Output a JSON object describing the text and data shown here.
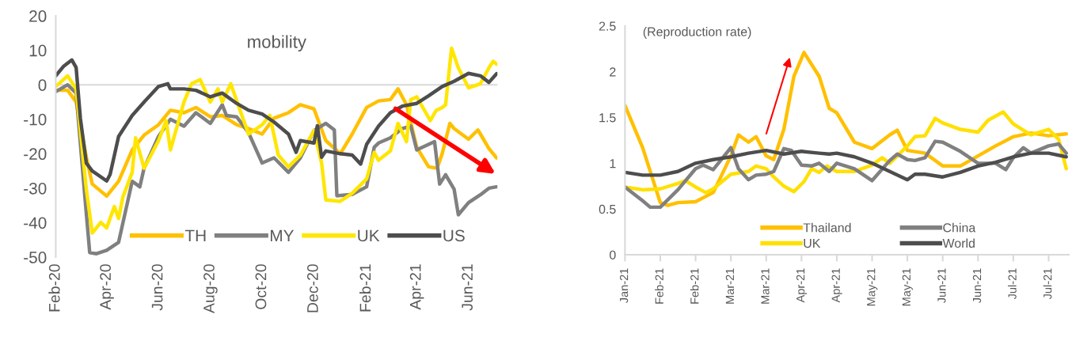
{
  "chart_data": [
    {
      "type": "line",
      "title": "mobility",
      "xlim": [
        "2020-02-01",
        "2021-07-05"
      ],
      "ylim": [
        -50,
        20
      ],
      "yticks": [
        -50,
        -40,
        -30,
        -20,
        -10,
        0,
        10,
        20
      ],
      "xticks": [
        {
          "value": "2020-02-01",
          "label": "Feb-20"
        },
        {
          "value": "2020-04-01",
          "label": "Apr-20"
        },
        {
          "value": "2020-06-01",
          "label": "Jun-20"
        },
        {
          "value": "2020-08-01",
          "label": "Aug-20"
        },
        {
          "value": "2020-10-01",
          "label": "Oct-20"
        },
        {
          "value": "2020-12-01",
          "label": "Dec-20"
        },
        {
          "value": "2021-02-01",
          "label": "Feb-21"
        },
        {
          "value": "2021-04-01",
          "label": "Apr-21"
        },
        {
          "value": "2021-06-01",
          "label": "Jun-21"
        }
      ],
      "ref_lines": [
        {
          "axis": "y",
          "value": 0,
          "color": "#d9d9d9"
        }
      ],
      "grid": false,
      "legend": "bottom",
      "series": [
        {
          "name": "TH",
          "color": "#ffc000",
          "x": [
            "2020-02-01",
            "2020-02-15",
            "2020-02-25",
            "2020-03-08",
            "2020-03-15",
            "2020-04-01",
            "2020-04-15",
            "2020-05-01",
            "2020-05-15",
            "2020-06-01",
            "2020-06-15",
            "2020-07-01",
            "2020-07-15",
            "2020-08-01",
            "2020-08-15",
            "2020-09-01",
            "2020-09-15",
            "2020-10-01",
            "2020-10-15",
            "2020-11-01",
            "2020-11-15",
            "2020-12-01",
            "2020-12-15",
            "2021-01-01",
            "2021-01-15",
            "2021-02-01",
            "2021-02-15",
            "2021-03-01",
            "2021-03-10",
            "2021-03-20",
            "2021-04-01",
            "2021-04-15",
            "2021-04-25",
            "2021-05-01",
            "2021-05-10",
            "2021-05-15",
            "2021-06-01",
            "2021-06-12",
            "2021-06-15",
            "2021-06-25",
            "2021-07-04"
          ],
          "values": [
            -1.6,
            -1.6,
            -5,
            -21,
            -28.8,
            -32.3,
            -28,
            -18.9,
            -14.6,
            -11.6,
            -7.4,
            -8.1,
            -6.6,
            -9.3,
            -8.9,
            -11.6,
            -12.7,
            -14.3,
            -9.7,
            -8.1,
            -5.8,
            -7,
            -16.2,
            -20,
            -14.3,
            -6.6,
            -4.7,
            -4.3,
            -1.2,
            -5.8,
            -18.1,
            -23.8,
            -24.2,
            -20,
            -11.2,
            -12.7,
            -15.8,
            -13.1,
            -14.3,
            -18.5,
            -21.2
          ]
        },
        {
          "name": "MY",
          "color": "#808080",
          "x": [
            "2020-02-01",
            "2020-02-15",
            "2020-02-25",
            "2020-03-05",
            "2020-03-12",
            "2020-03-20",
            "2020-04-01",
            "2020-04-15",
            "2020-05-01",
            "2020-05-10",
            "2020-05-15",
            "2020-06-01",
            "2020-06-15",
            "2020-07-01",
            "2020-07-15",
            "2020-08-01",
            "2020-08-15",
            "2020-08-20",
            "2020-09-01",
            "2020-09-15",
            "2020-10-01",
            "2020-10-15",
            "2020-11-01",
            "2020-11-15",
            "2020-12-01",
            "2020-12-15",
            "2020-12-25",
            "2020-12-28",
            "2021-01-15",
            "2021-02-01",
            "2021-02-10",
            "2021-02-15",
            "2021-03-01",
            "2021-03-15",
            "2021-03-25",
            "2021-04-01",
            "2021-04-15",
            "2021-04-22",
            "2021-04-28",
            "2021-05-05",
            "2021-05-15",
            "2021-05-20",
            "2021-06-01",
            "2021-06-15",
            "2021-06-25",
            "2021-07-04"
          ],
          "values": [
            -2,
            0,
            -2.4,
            -28.8,
            -48.7,
            -49,
            -48,
            -45.7,
            -28,
            -29.6,
            -24.2,
            -15,
            -10,
            -12,
            -8.1,
            -11.2,
            -5.8,
            -8.9,
            -9.3,
            -13.9,
            -22.7,
            -21.2,
            -25.4,
            -21.2,
            -13.3,
            -11.2,
            -13.1,
            -32.2,
            -31.8,
            -29.6,
            -18.1,
            -16.9,
            -15.4,
            -12.7,
            -12,
            -18.9,
            -17.3,
            -16.5,
            -28.8,
            -26.1,
            -30.3,
            -37.7,
            -34.2,
            -31.9,
            -30,
            -29.6
          ]
        },
        {
          "name": "UK",
          "color": "#ffe600",
          "x": [
            "2020-02-01",
            "2020-02-15",
            "2020-02-25",
            "2020-03-08",
            "2020-03-15",
            "2020-03-25",
            "2020-04-01",
            "2020-04-10",
            "2020-04-15",
            "2020-04-20",
            "2020-05-01",
            "2020-05-05",
            "2020-05-15",
            "2020-06-01",
            "2020-06-10",
            "2020-06-15",
            "2020-07-01",
            "2020-07-10",
            "2020-07-20",
            "2020-08-01",
            "2020-08-10",
            "2020-08-15",
            "2020-08-25",
            "2020-09-05",
            "2020-09-15",
            "2020-10-01",
            "2020-10-10",
            "2020-10-20",
            "2020-11-01",
            "2020-11-15",
            "2020-12-01",
            "2020-12-10",
            "2020-12-15",
            "2021-01-01",
            "2021-01-15",
            "2021-02-01",
            "2021-02-10",
            "2021-02-15",
            "2021-03-01",
            "2021-03-10",
            "2021-03-20",
            "2021-03-25",
            "2021-04-01",
            "2021-04-17",
            "2021-04-24",
            "2021-05-01",
            "2021-05-05",
            "2021-05-12",
            "2021-05-20",
            "2021-06-01",
            "2021-06-15",
            "2021-06-25",
            "2021-06-30",
            "2021-07-04"
          ],
          "values": [
            -0.5,
            2.6,
            -1.2,
            -30.3,
            -43,
            -39.9,
            -41.5,
            -35.3,
            -38.8,
            -32.6,
            -25.4,
            -15.4,
            -24.2,
            -16.2,
            -10.4,
            -18.9,
            -5,
            0.3,
            1.5,
            -5,
            -1.2,
            -5,
            0.3,
            -7.4,
            -14.3,
            -11.6,
            -8.9,
            -20.4,
            -23.8,
            -20.4,
            -13.3,
            -22.7,
            -33.4,
            -33.8,
            -31.5,
            -27.3,
            -19.6,
            -21.9,
            -19.2,
            -11.2,
            -16.5,
            -4.3,
            -3.5,
            -10.4,
            -7.4,
            -6.6,
            -5.8,
            10.6,
            4.9,
            -0.9,
            0.3,
            4.9,
            6.8,
            6
          ]
        },
        {
          "name": "US",
          "color": "#4d4d4d",
          "x": [
            "2020-02-01",
            "2020-02-10",
            "2020-02-20",
            "2020-02-25",
            "2020-03-01",
            "2020-03-08",
            "2020-03-15",
            "2020-04-01",
            "2020-04-05",
            "2020-04-15",
            "2020-05-01",
            "2020-05-15",
            "2020-06-01",
            "2020-06-12",
            "2020-06-15",
            "2020-07-01",
            "2020-07-15",
            "2020-08-01",
            "2020-08-15",
            "2020-09-01",
            "2020-09-15",
            "2020-10-01",
            "2020-10-15",
            "2020-11-01",
            "2020-11-10",
            "2020-11-15",
            "2020-12-01",
            "2020-12-05",
            "2020-12-10",
            "2020-12-15",
            "2021-01-01",
            "2021-01-15",
            "2021-01-25",
            "2021-02-01",
            "2021-02-15",
            "2021-03-01",
            "2021-03-15",
            "2021-04-01",
            "2021-04-15",
            "2021-05-01",
            "2021-05-15",
            "2021-06-01",
            "2021-06-15",
            "2021-06-25",
            "2021-07-04"
          ],
          "values": [
            2.6,
            5.3,
            7.2,
            5,
            -9.7,
            -22.7,
            -25,
            -27.9,
            -26,
            -15,
            -8.9,
            -5,
            -0.5,
            0.3,
            -1.2,
            -1.2,
            -1.6,
            -3.5,
            -2.4,
            -5.4,
            -7.4,
            -8.5,
            -10.8,
            -14.3,
            -19.6,
            -16.2,
            -16.9,
            -11.9,
            -21,
            -19.2,
            -20,
            -20.4,
            -23,
            -17.3,
            -12,
            -8.1,
            -6.2,
            -5.4,
            -3.2,
            -0.5,
            1,
            3.3,
            2.6,
            0.7,
            3.2
          ]
        }
      ]
    },
    {
      "type": "line",
      "annotations": [
        "(Reproduction rate)"
      ],
      "xlim": [
        "2021-01-31",
        "2021-07-26"
      ],
      "ylim": [
        0,
        2.5
      ],
      "yticks": [
        0,
        0.5,
        1,
        1.5,
        2,
        2.5
      ],
      "xticks": [
        {
          "value": "2021-01-31",
          "label": "Jan-21"
        },
        {
          "value": "2021-02-14",
          "label": "Feb-21"
        },
        {
          "value": "2021-02-28",
          "label": "Feb-21"
        },
        {
          "value": "2021-03-14",
          "label": "Mar-21"
        },
        {
          "value": "2021-03-28",
          "label": "Mar-21"
        },
        {
          "value": "2021-04-11",
          "label": "Apr-21"
        },
        {
          "value": "2021-04-25",
          "label": "Apr-21"
        },
        {
          "value": "2021-05-09",
          "label": "May-21"
        },
        {
          "value": "2021-05-23",
          "label": "May-21"
        },
        {
          "value": "2021-06-06",
          "label": "Jun-21"
        },
        {
          "value": "2021-06-20",
          "label": "Jun-21"
        },
        {
          "value": "2021-07-04",
          "label": "Jul-21"
        },
        {
          "value": "2021-07-18",
          "label": "Jul-21"
        }
      ],
      "grid": false,
      "legend": "bottom",
      "series": [
        {
          "name": "Thailand",
          "color": "#ffc000",
          "x": [
            "2021-01-31",
            "2021-02-07",
            "2021-02-14",
            "2021-02-17",
            "2021-02-21",
            "2021-02-28",
            "2021-03-07",
            "2021-03-14",
            "2021-03-17",
            "2021-03-21",
            "2021-03-24",
            "2021-03-28",
            "2021-03-31",
            "2021-04-04",
            "2021-04-08",
            "2021-04-12",
            "2021-04-18",
            "2021-04-22",
            "2021-04-25",
            "2021-05-02",
            "2021-05-09",
            "2021-05-16",
            "2021-05-19",
            "2021-05-23",
            "2021-05-30",
            "2021-06-06",
            "2021-06-13",
            "2021-06-20",
            "2021-06-27",
            "2021-07-04",
            "2021-07-11",
            "2021-07-18",
            "2021-07-25"
          ],
          "values": [
            1.63,
            1.17,
            0.57,
            0.54,
            0.57,
            0.58,
            0.68,
            1.08,
            1.31,
            1.23,
            1.29,
            1.08,
            1.04,
            1.37,
            1.95,
            2.21,
            1.95,
            1.6,
            1.55,
            1.23,
            1.16,
            1.31,
            1.36,
            1.14,
            1.11,
            0.97,
            0.97,
            1.08,
            1.19,
            1.29,
            1.33,
            1.3,
            1.32
          ]
        },
        {
          "name": "UK",
          "color": "#ffe000",
          "x": [
            "2021-01-31",
            "2021-02-07",
            "2021-02-14",
            "2021-02-21",
            "2021-02-24",
            "2021-02-28",
            "2021-03-04",
            "2021-03-07",
            "2021-03-14",
            "2021-03-21",
            "2021-03-24",
            "2021-03-28",
            "2021-03-31",
            "2021-04-04",
            "2021-04-08",
            "2021-04-12",
            "2021-04-15",
            "2021-04-18",
            "2021-04-21",
            "2021-04-25",
            "2021-05-02",
            "2021-05-09",
            "2021-05-13",
            "2021-05-16",
            "2021-05-23",
            "2021-05-26",
            "2021-05-30",
            "2021-06-03",
            "2021-06-06",
            "2021-06-13",
            "2021-06-20",
            "2021-06-24",
            "2021-06-30",
            "2021-07-04",
            "2021-07-08",
            "2021-07-11",
            "2021-07-18",
            "2021-07-22",
            "2021-07-25"
          ],
          "values": [
            0.74,
            0.71,
            0.72,
            0.78,
            0.81,
            0.74,
            0.68,
            0.72,
            0.88,
            0.91,
            0.97,
            0.94,
            0.85,
            0.75,
            0.69,
            0.8,
            0.94,
            0.9,
            0.97,
            0.91,
            0.91,
            0.98,
            1.06,
            1.0,
            1.19,
            1.29,
            1.3,
            1.49,
            1.44,
            1.37,
            1.34,
            1.47,
            1.56,
            1.43,
            1.36,
            1.31,
            1.37,
            1.26,
            0.94
          ]
        },
        {
          "name": "China",
          "color": "#808080",
          "x": [
            "2021-01-31",
            "2021-02-07",
            "2021-02-10",
            "2021-02-14",
            "2021-02-21",
            "2021-02-28",
            "2021-03-03",
            "2021-03-07",
            "2021-03-14",
            "2021-03-17",
            "2021-03-21",
            "2021-03-24",
            "2021-03-28",
            "2021-03-31",
            "2021-04-04",
            "2021-04-07",
            "2021-04-11",
            "2021-04-15",
            "2021-04-18",
            "2021-04-22",
            "2021-04-25",
            "2021-05-02",
            "2021-05-09",
            "2021-05-16",
            "2021-05-19",
            "2021-05-23",
            "2021-05-26",
            "2021-05-30",
            "2021-06-03",
            "2021-06-06",
            "2021-06-13",
            "2021-06-20",
            "2021-06-27",
            "2021-07-01",
            "2021-07-04",
            "2021-07-08",
            "2021-07-11",
            "2021-07-18",
            "2021-07-22",
            "2021-07-25"
          ],
          "values": [
            0.74,
            0.59,
            0.52,
            0.52,
            0.71,
            0.94,
            0.98,
            0.93,
            1.17,
            0.94,
            0.82,
            0.87,
            0.88,
            0.91,
            1.16,
            1.14,
            0.98,
            0.97,
            1.0,
            0.91,
            1.0,
            0.94,
            0.81,
            1.03,
            1.1,
            1.04,
            1.03,
            1.06,
            1.24,
            1.23,
            1.13,
            1.0,
            1.0,
            0.93,
            1.06,
            1.17,
            1.11,
            1.19,
            1.21,
            1.11
          ]
        },
        {
          "name": "World",
          "color": "#4d4d4d",
          "x": [
            "2021-01-31",
            "2021-02-07",
            "2021-02-14",
            "2021-02-21",
            "2021-02-28",
            "2021-03-07",
            "2021-03-14",
            "2021-03-21",
            "2021-03-28",
            "2021-04-04",
            "2021-04-11",
            "2021-04-18",
            "2021-04-22",
            "2021-04-25",
            "2021-05-02",
            "2021-05-09",
            "2021-05-16",
            "2021-05-23",
            "2021-05-26",
            "2021-05-30",
            "2021-06-06",
            "2021-06-13",
            "2021-06-20",
            "2021-06-27",
            "2021-07-04",
            "2021-07-11",
            "2021-07-18",
            "2021-07-25"
          ],
          "values": [
            0.9,
            0.87,
            0.87,
            0.91,
            1.0,
            1.04,
            1.07,
            1.11,
            1.14,
            1.1,
            1.13,
            1.11,
            1.1,
            1.11,
            1.07,
            1.0,
            0.91,
            0.82,
            0.88,
            0.88,
            0.85,
            0.9,
            0.97,
            1.01,
            1.07,
            1.11,
            1.11,
            1.07
          ]
        }
      ]
    }
  ]
}
